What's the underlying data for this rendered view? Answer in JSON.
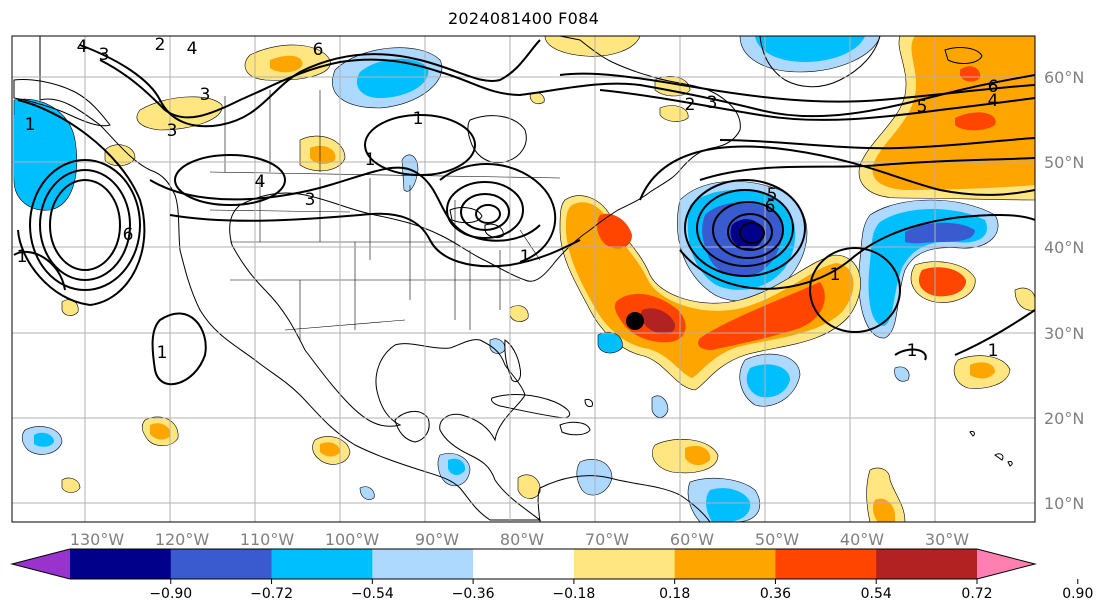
{
  "title": "2024081400 F084",
  "map": {
    "projection": "PlateCarree",
    "lon_labels": [
      "130°W",
      "120°W",
      "110°W",
      "100°W",
      "90°W",
      "80°W",
      "70°W",
      "60°W",
      "50°W",
      "40°W",
      "30°W"
    ],
    "lat_labels": [
      "60°N",
      "50°N",
      "40°N",
      "30°N",
      "20°N",
      "10°N"
    ],
    "contour_labels": [
      "4",
      "3",
      "2",
      "4",
      "6",
      "3",
      "3",
      "1",
      "6",
      "1",
      "5",
      "6",
      "4",
      "2",
      "3",
      "4",
      "3",
      "1",
      "1",
      "5",
      "6",
      "1",
      "1",
      "1",
      "1",
      "1"
    ],
    "marker": "storm-center-dot"
  },
  "colorbar": {
    "ticks": [
      "−0.90",
      "−0.72",
      "−0.54",
      "−0.36",
      "−0.18",
      "0.18",
      "0.36",
      "0.54",
      "0.72",
      "0.90"
    ],
    "colors": [
      "#9a32cd",
      "#00008b",
      "#3a5bd0",
      "#00bfff",
      "#add8ff",
      "#ffffff",
      "#ffe680",
      "#ffa500",
      "#ff4500",
      "#b22222",
      "#ff80b0"
    ]
  }
}
